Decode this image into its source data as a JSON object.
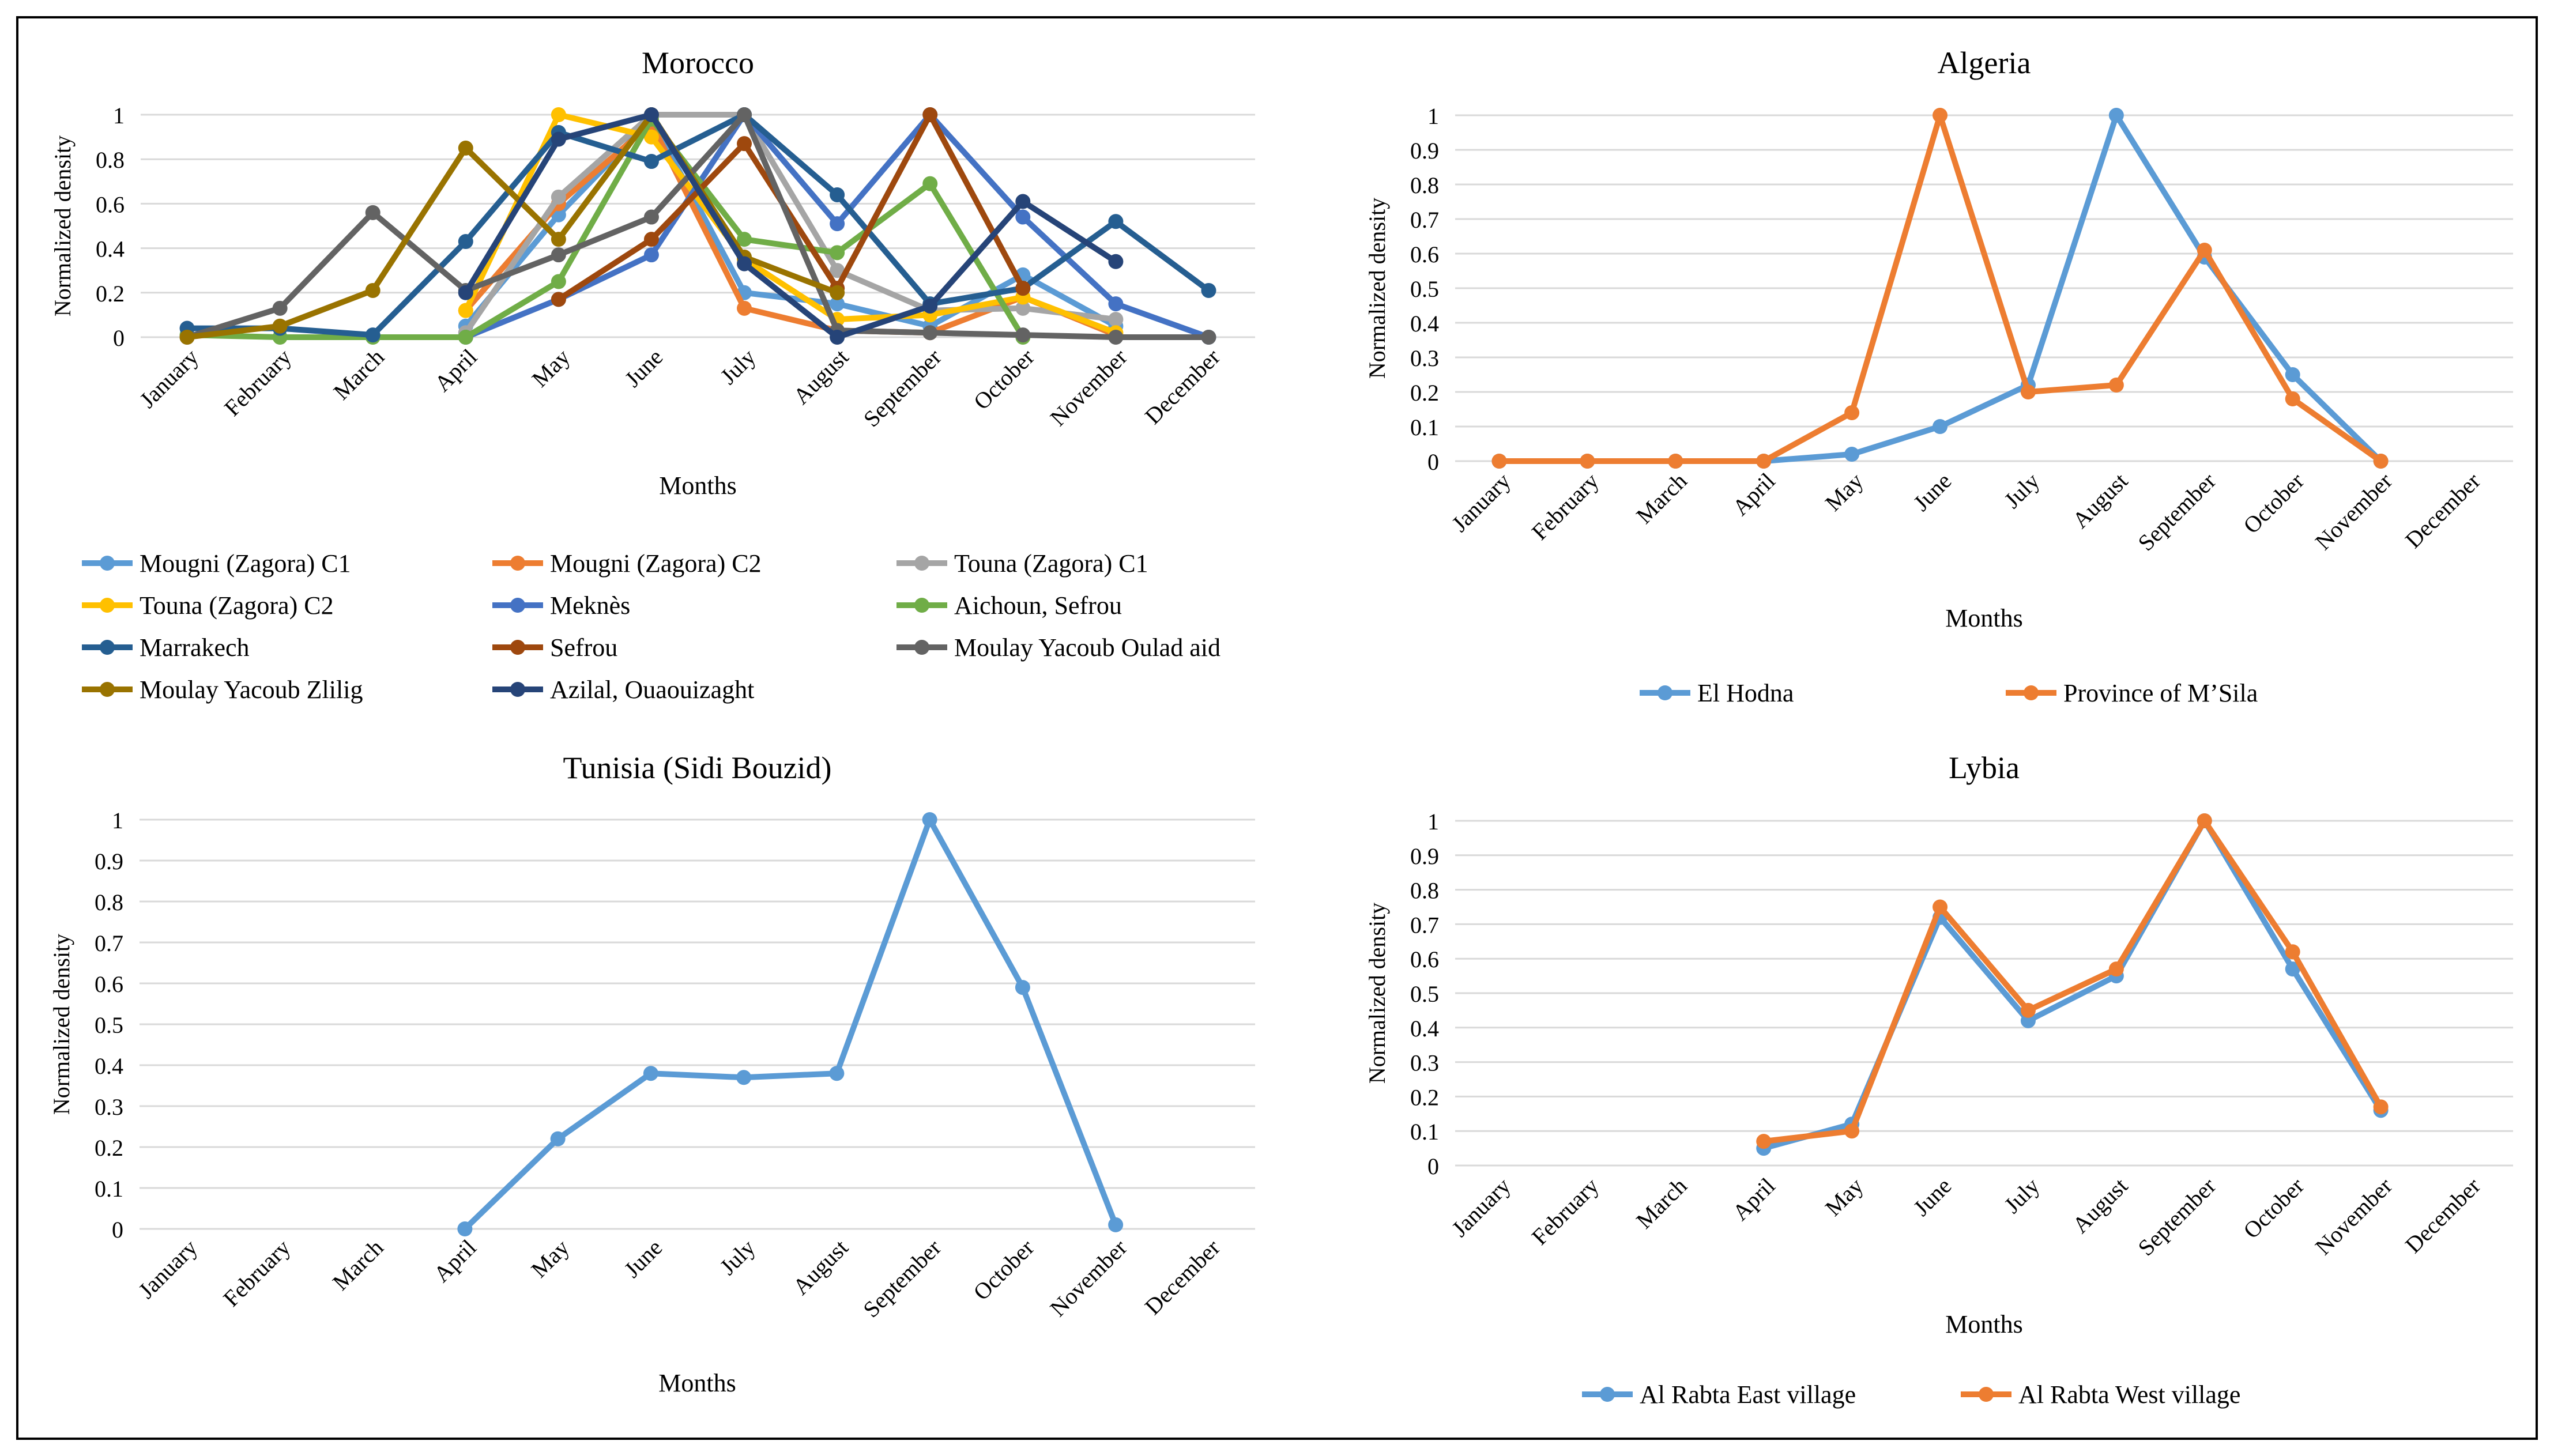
{
  "chart_data": [
    {
      "type": "line",
      "title": "Morocco",
      "xlabel": "Months",
      "ylabel": "Normalized density",
      "ylim": [
        0,
        1
      ],
      "y_ticks": [
        "0",
        "0.2",
        "0.4",
        "0.6",
        "0.8",
        "1"
      ],
      "grid": true,
      "legend_position": "bottom",
      "categories": [
        "January",
        "February",
        "March",
        "April",
        "May",
        "June",
        "July",
        "August",
        "September",
        "October",
        "November",
        "December"
      ],
      "series": [
        {
          "name": "Mougni (Zagora) C1",
          "color": "#5B9BD5",
          "values": [
            null,
            null,
            null,
            0.05,
            0.55,
            0.98,
            0.2,
            0.15,
            0.05,
            0.28,
            0.05,
            null
          ]
        },
        {
          "name": "Mougni (Zagora) C2",
          "color": "#ED7D31",
          "values": [
            null,
            null,
            null,
            0.12,
            0.6,
            0.96,
            0.13,
            0.03,
            0.02,
            0.18,
            0.01,
            null
          ]
        },
        {
          "name": "Touna (Zagora) C1",
          "color": "#A5A5A5",
          "values": [
            null,
            null,
            null,
            0.02,
            0.63,
            1.0,
            1.0,
            0.3,
            0.12,
            0.13,
            0.08,
            null
          ]
        },
        {
          "name": "Touna (Zagora) C2",
          "color": "#FFC000",
          "values": [
            null,
            null,
            null,
            0.12,
            1.0,
            0.9,
            0.35,
            0.08,
            0.1,
            0.18,
            0.02,
            null
          ]
        },
        {
          "name": "Meknès",
          "color": "#4472C4",
          "values": [
            null,
            null,
            null,
            0.0,
            0.17,
            0.37,
            1.0,
            0.51,
            1.0,
            0.54,
            0.15,
            0.0
          ]
        },
        {
          "name": "Aichoun, Sefrou",
          "color": "#70AD47",
          "values": [
            0.01,
            0.0,
            0.0,
            0.0,
            0.25,
            0.98,
            0.44,
            0.38,
            0.69,
            0.0,
            null,
            null
          ]
        },
        {
          "name": "Marrakech",
          "color": "#255E91",
          "values": [
            0.04,
            0.04,
            0.01,
            0.43,
            0.92,
            0.79,
            1.0,
            0.64,
            0.15,
            0.22,
            0.52,
            0.21
          ]
        },
        {
          "name": "Sefrou",
          "color": "#9E480E",
          "values": [
            null,
            null,
            null,
            null,
            0.17,
            0.44,
            0.87,
            0.22,
            1.0,
            0.22,
            null,
            null
          ]
        },
        {
          "name": "Moulay  Yacoub Oulad aid",
          "color": "#636363",
          "values": [
            0.0,
            0.13,
            0.56,
            0.21,
            0.37,
            0.54,
            1.0,
            0.03,
            0.02,
            0.01,
            0.0,
            0.0
          ]
        },
        {
          "name": "Moulay  Yacoub Zlilig",
          "color": "#997300",
          "values": [
            0.0,
            0.05,
            0.21,
            0.85,
            0.44,
            1.0,
            0.36,
            0.2,
            null,
            null,
            null,
            null
          ]
        },
        {
          "name": "Azilal, Ouaouizaght",
          "color": "#264478",
          "values": [
            null,
            null,
            null,
            0.2,
            0.89,
            1.0,
            0.33,
            0.0,
            0.14,
            0.61,
            0.34,
            null
          ]
        }
      ]
    },
    {
      "type": "line",
      "title": "Algeria",
      "xlabel": "Months",
      "ylabel": "Normalized density",
      "ylim": [
        0,
        1
      ],
      "y_ticks": [
        "0",
        "0.1",
        "0.2",
        "0.3",
        "0.4",
        "0.5",
        "0.6",
        "0.7",
        "0.8",
        "0.9",
        "1"
      ],
      "grid": true,
      "legend_position": "bottom",
      "categories": [
        "January",
        "February",
        "March",
        "April",
        "May",
        "June",
        "July",
        "August",
        "September",
        "October",
        "November",
        "December"
      ],
      "series": [
        {
          "name": "El Hodna",
          "color": "#5B9BD5",
          "values": [
            0,
            0,
            0,
            0,
            0.02,
            0.1,
            0.22,
            1.0,
            0.59,
            0.25,
            0.0,
            null
          ]
        },
        {
          "name": "Province of M’Sila",
          "color": "#ED7D31",
          "values": [
            0,
            0,
            0,
            0,
            0.14,
            1.0,
            0.2,
            0.22,
            0.61,
            0.18,
            0.0,
            null
          ]
        }
      ]
    },
    {
      "type": "line",
      "title": "Tunisia (Sidi Bouzid)",
      "xlabel": "Months",
      "ylabel": "Normalized density",
      "ylim": [
        0,
        1
      ],
      "y_ticks": [
        "0",
        "0.1",
        "0.2",
        "0.3",
        "0.4",
        "0.5",
        "0.6",
        "0.7",
        "0.8",
        "0.9",
        "1"
      ],
      "grid": true,
      "legend_position": "none",
      "categories": [
        "January",
        "February",
        "March",
        "April",
        "May",
        "June",
        "July",
        "August",
        "September",
        "October",
        "November",
        "December"
      ],
      "series": [
        {
          "color": "#5B9BD5",
          "values": [
            null,
            null,
            null,
            0.0,
            0.22,
            0.38,
            0.37,
            0.38,
            1.0,
            0.59,
            0.01,
            null
          ]
        }
      ]
    },
    {
      "type": "line",
      "title": "Lybia",
      "xlabel": "Months",
      "ylabel": "Normalized density",
      "ylim": [
        0,
        1
      ],
      "y_ticks": [
        "0",
        "0.1",
        "0.2",
        "0.3",
        "0.4",
        "0.5",
        "0.6",
        "0.7",
        "0.8",
        "0.9",
        "1"
      ],
      "grid": true,
      "legend_position": "bottom",
      "categories": [
        "January",
        "February",
        "March",
        "April",
        "May",
        "June",
        "July",
        "August",
        "September",
        "October",
        "November",
        "December"
      ],
      "series": [
        {
          "name": "Al Rabta East village",
          "color": "#5B9BD5",
          "values": [
            null,
            null,
            null,
            0.05,
            0.12,
            0.72,
            0.42,
            0.55,
            1.0,
            0.57,
            0.16,
            null
          ]
        },
        {
          "name": "Al Rabta West village",
          "color": "#ED7D31",
          "values": [
            null,
            null,
            null,
            0.07,
            0.1,
            0.75,
            0.45,
            0.57,
            1.0,
            0.62,
            0.17,
            null
          ]
        }
      ]
    }
  ]
}
